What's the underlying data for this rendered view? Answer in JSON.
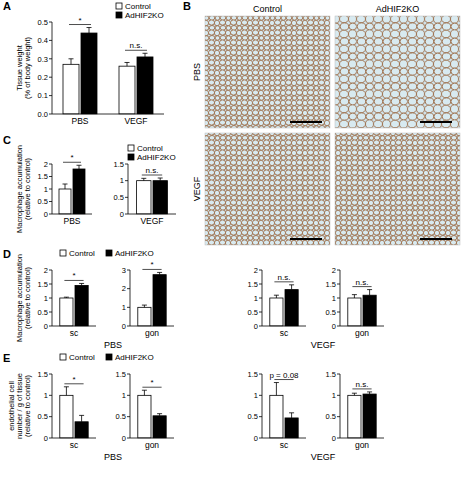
{
  "panel_labels": [
    "A",
    "B",
    "C",
    "D",
    "E"
  ],
  "micrographs": {
    "columns": [
      "Control",
      "AdHIF2KO"
    ],
    "rows": [
      "PBS",
      "VEGF"
    ]
  },
  "group_labels": {
    "D": [
      "PBS",
      "VEGF"
    ],
    "E": [
      "PBS",
      "VEGF"
    ]
  },
  "chart_data": [
    {
      "type": "bar",
      "ylabel": "Tissue weight\n(% of body weight)",
      "categories": [
        "PBS",
        "VEGF"
      ],
      "series": [
        {
          "name": "Control",
          "color": "#ffffff",
          "values": [
            0.27,
            0.26
          ],
          "errors": [
            0.03,
            0.02
          ]
        },
        {
          "name": "AdHIF2KO",
          "color": "#000000",
          "values": [
            0.44,
            0.31
          ],
          "errors": [
            0.03,
            0.02
          ]
        }
      ],
      "ylim": [
        0,
        0.5
      ],
      "yticks": [
        {
          "value": 0,
          "label": "0.0"
        },
        {
          "value": 0.1,
          "label": "0.1"
        },
        {
          "value": 0.2,
          "label": "0.2"
        },
        {
          "value": 0.3,
          "label": "0.3"
        },
        {
          "value": 0.4,
          "label": "0.4"
        },
        {
          "value": 0.5,
          "label": "0.5"
        }
      ],
      "annotations": [
        "*",
        "n.s."
      ],
      "legend": "top-right"
    },
    {
      "type": "bar",
      "ylabel": "Macrophage accumulation\n(relative to control)",
      "categories": [
        "PBS"
      ],
      "series": [
        {
          "name": "Control",
          "color": "#ffffff",
          "values": [
            1.0
          ],
          "errors": [
            0.2
          ]
        },
        {
          "name": "AdHIF2KO",
          "color": "#000000",
          "values": [
            1.8
          ],
          "errors": [
            0.15
          ]
        }
      ],
      "ylim": [
        0,
        2
      ],
      "yticks": [
        0,
        0.5,
        1,
        1.5,
        2
      ],
      "annotations": [
        "*"
      ]
    },
    {
      "type": "bar",
      "categories": [
        "VEGF"
      ],
      "series": [
        {
          "name": "Control",
          "color": "#ffffff",
          "values": [
            1.0
          ],
          "errors": [
            0.07
          ]
        },
        {
          "name": "AdHIF2KO",
          "color": "#000000",
          "values": [
            1.0
          ],
          "errors": [
            0.08
          ]
        }
      ],
      "ylim": [
        0,
        1.5
      ],
      "yticks": [
        0,
        0.5,
        1,
        1.5
      ],
      "annotations": [
        "n.s."
      ],
      "legend": "top-right"
    },
    {
      "type": "bar",
      "ylabel": "Macrophage accumulation\n(relative to control)",
      "categories": [
        "sc"
      ],
      "series": [
        {
          "name": "Control",
          "color": "#ffffff",
          "values": [
            1.0
          ],
          "errors": [
            0.03
          ]
        },
        {
          "name": "AdHIF2KO",
          "color": "#000000",
          "values": [
            1.45
          ],
          "errors": [
            0.07
          ]
        }
      ],
      "ylim": [
        0,
        2
      ],
      "yticks": [
        0,
        0.5,
        1,
        1.5,
        2
      ],
      "annotations": [
        "*"
      ],
      "legend": "top-left"
    },
    {
      "type": "bar",
      "categories": [
        "gon"
      ],
      "series": [
        {
          "name": "Control",
          "color": "#ffffff",
          "values": [
            1.0
          ],
          "errors": [
            0.12
          ]
        },
        {
          "name": "AdHIF2KO",
          "color": "#000000",
          "values": [
            2.75
          ],
          "errors": [
            0.12
          ]
        }
      ],
      "ylim": [
        0,
        3
      ],
      "yticks": [
        0,
        1,
        2,
        3
      ],
      "annotations": [
        "*"
      ]
    },
    {
      "type": "bar",
      "categories": [
        "sc"
      ],
      "series": [
        {
          "name": "Control",
          "color": "#ffffff",
          "values": [
            1.0
          ],
          "errors": [
            0.1
          ]
        },
        {
          "name": "AdHIF2KO",
          "color": "#000000",
          "values": [
            1.3
          ],
          "errors": [
            0.17
          ]
        }
      ],
      "ylim": [
        0,
        2
      ],
      "yticks": [
        0,
        0.5,
        1,
        1.5,
        2
      ],
      "annotations": [
        "n.s."
      ]
    },
    {
      "type": "bar",
      "categories": [
        "gon"
      ],
      "series": [
        {
          "name": "Control",
          "color": "#ffffff",
          "values": [
            1.0
          ],
          "errors": [
            0.12
          ]
        },
        {
          "name": "AdHIF2KO",
          "color": "#000000",
          "values": [
            1.1
          ],
          "errors": [
            0.2
          ]
        }
      ],
      "ylim": [
        0,
        2
      ],
      "yticks": [
        0,
        0.5,
        1,
        1.5,
        2
      ],
      "annotations": [
        "n.s."
      ]
    },
    {
      "type": "bar",
      "ylabel": "endothelial cell\nnumber / g of tissue\n(relative to control)",
      "categories": [
        "sc"
      ],
      "series": [
        {
          "name": "Control",
          "color": "#ffffff",
          "values": [
            1.0
          ],
          "errors": [
            0.2
          ]
        },
        {
          "name": "AdHIF2KO",
          "color": "#000000",
          "values": [
            0.38
          ],
          "errors": [
            0.15
          ]
        }
      ],
      "ylim": [
        0,
        1.5
      ],
      "yticks": [
        0,
        0.5,
        1,
        1.5
      ],
      "annotations": [
        "*"
      ],
      "legend": "top-left"
    },
    {
      "type": "bar",
      "categories": [
        "gon"
      ],
      "series": [
        {
          "name": "Control",
          "color": "#ffffff",
          "values": [
            1.0
          ],
          "errors": [
            0.12
          ]
        },
        {
          "name": "AdHIF2KO",
          "color": "#000000",
          "values": [
            0.52
          ],
          "errors": [
            0.05
          ]
        }
      ],
      "ylim": [
        0,
        1.5
      ],
      "yticks": [
        0,
        0.5,
        1,
        1.5
      ],
      "annotations": [
        "*"
      ]
    },
    {
      "type": "bar",
      "categories": [
        "sc"
      ],
      "series": [
        {
          "name": "Control",
          "color": "#ffffff",
          "values": [
            1.0
          ],
          "errors": [
            0.3
          ]
        },
        {
          "name": "AdHIF2KO",
          "color": "#000000",
          "values": [
            0.47
          ],
          "errors": [
            0.12
          ]
        }
      ],
      "ylim": [
        0,
        1.5
      ],
      "yticks": [
        0,
        0.5,
        1,
        1.5
      ],
      "annotations": [
        "p = 0.08"
      ]
    },
    {
      "type": "bar",
      "categories": [
        "gon"
      ],
      "series": [
        {
          "name": "Control",
          "color": "#ffffff",
          "values": [
            1.0
          ],
          "errors": [
            0.05
          ]
        },
        {
          "name": "AdHIF2KO",
          "color": "#000000",
          "values": [
            1.03
          ],
          "errors": [
            0.05
          ]
        }
      ],
      "ylim": [
        0,
        1.5
      ],
      "yticks": [
        0,
        0.5,
        1,
        1.5
      ],
      "annotations": [
        "n.s."
      ]
    }
  ]
}
